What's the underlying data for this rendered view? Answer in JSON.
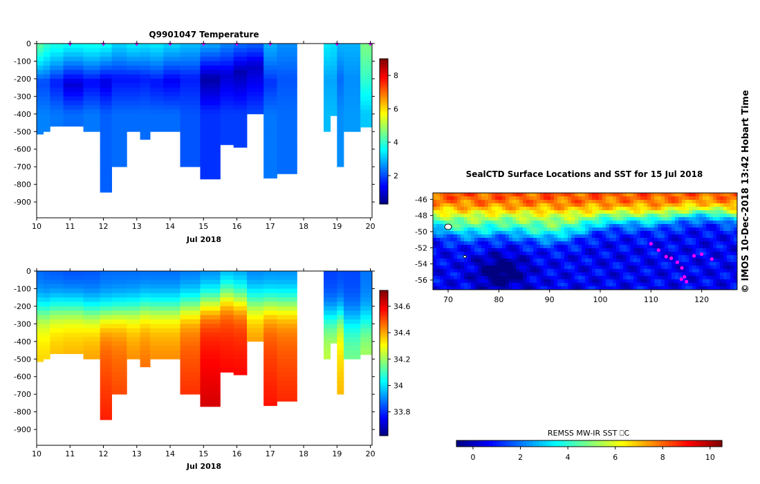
{
  "chart_data": [
    {
      "type": "heatmap",
      "title": "Q9901047  Temperature",
      "xlabel": "Jul 2018",
      "ylabel": "",
      "x_ticks": [
        "10",
        "11",
        "12",
        "13",
        "14",
        "15",
        "16",
        "17",
        "18",
        "19",
        "20"
      ],
      "y_ticks": [
        "0",
        "-100",
        "-200",
        "-300",
        "-400",
        "-500",
        "-600",
        "-700",
        "-800",
        "-900"
      ],
      "xlim": [
        10,
        20.05
      ],
      "ylim": [
        -990,
        0
      ],
      "colorbar": {
        "ticks": [
          "2",
          "4",
          "6",
          "8"
        ],
        "range": [
          0.3,
          9.0
        ]
      },
      "profile_markers_day": [
        11,
        12,
        13,
        14,
        15,
        16,
        17,
        19,
        20
      ],
      "profiles": [
        {
          "t": [
            10.0,
            10.2
          ],
          "depth": 515,
          "surface": 4.4,
          "min": 2.0,
          "mind": 220,
          "deep": 2.5
        },
        {
          "t": [
            10.2,
            10.4
          ],
          "depth": 500,
          "surface": 4.0,
          "min": 2.0,
          "mind": 220,
          "deep": 2.5
        },
        {
          "t": [
            10.4,
            10.8
          ],
          "depth": 470,
          "surface": 3.8,
          "min": 1.6,
          "mind": 220,
          "deep": 2.4
        },
        {
          "t": [
            10.8,
            11.4
          ],
          "depth": 470,
          "surface": 3.6,
          "min": 1.0,
          "mind": 230,
          "deep": 2.3
        },
        {
          "t": [
            11.4,
            11.9
          ],
          "depth": 500,
          "surface": 3.7,
          "min": 1.4,
          "mind": 220,
          "deep": 2.4
        },
        {
          "t": [
            11.9,
            12.25
          ],
          "depth": 845,
          "surface": 3.6,
          "min": 1.1,
          "mind": 220,
          "deep": 2.2
        },
        {
          "t": [
            12.25,
            12.7
          ],
          "depth": 700,
          "surface": 3.2,
          "min": 1.5,
          "mind": 200,
          "deep": 2.3
        },
        {
          "t": [
            12.7,
            13.1
          ],
          "depth": 500,
          "surface": 3.4,
          "min": 1.5,
          "mind": 200,
          "deep": 2.3
        },
        {
          "t": [
            13.1,
            13.4
          ],
          "depth": 545,
          "surface": 3.3,
          "min": 1.6,
          "mind": 200,
          "deep": 2.3
        },
        {
          "t": [
            13.4,
            13.8
          ],
          "depth": 500,
          "surface": 3.4,
          "min": 1.5,
          "mind": 220,
          "deep": 2.3
        },
        {
          "t": [
            13.8,
            14.3
          ],
          "depth": 500,
          "surface": 3.2,
          "min": 1.3,
          "mind": 210,
          "deep": 2.3
        },
        {
          "t": [
            14.3,
            14.9
          ],
          "depth": 700,
          "surface": 3.0,
          "min": 1.6,
          "mind": 200,
          "deep": 2.1
        },
        {
          "t": [
            14.9,
            15.5
          ],
          "depth": 770,
          "surface": 2.8,
          "min": 0.6,
          "mind": 200,
          "deep": 1.8
        },
        {
          "t": [
            15.5,
            15.9
          ],
          "depth": 575,
          "surface": 2.5,
          "min": 1.0,
          "mind": 180,
          "deep": 1.9
        },
        {
          "t": [
            15.9,
            16.3
          ],
          "depth": 590,
          "surface": 2.3,
          "min": 0.7,
          "mind": 160,
          "deep": 1.9
        },
        {
          "t": [
            16.3,
            16.8
          ],
          "depth": 400,
          "surface": 2.2,
          "min": 0.9,
          "mind": 130,
          "deep": 2.0
        },
        {
          "t": [
            16.8,
            17.2
          ],
          "depth": 765,
          "surface": 2.9,
          "min": 1.8,
          "mind": 220,
          "deep": 2.4
        },
        {
          "t": [
            17.2,
            17.8
          ],
          "depth": 740,
          "surface": 2.6,
          "min": 2.1,
          "mind": 200,
          "deep": 2.3
        },
        {
          "t": [
            18.6,
            18.8
          ],
          "depth": 500,
          "surface": 3.4,
          "min": 2.8,
          "mind": 200,
          "deep": 3.0
        },
        {
          "t": [
            18.8,
            19.0
          ],
          "depth": 410,
          "surface": 3.3,
          "min": 2.8,
          "mind": 200,
          "deep": 3.0
        },
        {
          "t": [
            19.0,
            19.2
          ],
          "depth": 700,
          "surface": 2.9,
          "min": 2.3,
          "mind": 200,
          "deep": 2.6
        },
        {
          "t": [
            19.2,
            19.7
          ],
          "depth": 500,
          "surface": 2.9,
          "min": 2.6,
          "mind": 200,
          "deep": 2.7
        },
        {
          "t": [
            19.7,
            20.05
          ],
          "depth": 475,
          "surface": 4.6,
          "min": 4.0,
          "mind": 200,
          "deep": 3.1
        }
      ]
    },
    {
      "type": "heatmap",
      "title": "",
      "xlabel": "Jul 2018",
      "ylabel": "",
      "x_ticks": [
        "10",
        "11",
        "12",
        "13",
        "14",
        "15",
        "16",
        "17",
        "18",
        "19",
        "20"
      ],
      "y_ticks": [
        "0",
        "-100",
        "-200",
        "-300",
        "-400",
        "-500",
        "-600",
        "-700",
        "-800",
        "-900"
      ],
      "xlim": [
        10,
        20.05
      ],
      "ylim": [
        -990,
        0
      ],
      "colorbar": {
        "ticks": [
          "33.8",
          "34",
          "34.2",
          "34.4",
          "34.6"
        ],
        "range": [
          33.62,
          34.72
        ]
      },
      "profiles": [
        {
          "t": [
            10.0,
            10.2
          ],
          "depth": 515,
          "surface": 33.86,
          "cline": 210,
          "deep": 34.3
        },
        {
          "t": [
            10.2,
            10.4
          ],
          "depth": 500,
          "surface": 33.85,
          "cline": 210,
          "deep": 34.3
        },
        {
          "t": [
            10.4,
            10.8
          ],
          "depth": 470,
          "surface": 33.84,
          "cline": 200,
          "deep": 34.33
        },
        {
          "t": [
            10.8,
            11.4
          ],
          "depth": 470,
          "surface": 33.83,
          "cline": 200,
          "deep": 34.34
        },
        {
          "t": [
            11.4,
            11.9
          ],
          "depth": 500,
          "surface": 33.84,
          "cline": 220,
          "deep": 34.36
        },
        {
          "t": [
            11.9,
            12.25
          ],
          "depth": 845,
          "surface": 33.86,
          "cline": 230,
          "deep": 34.44
        },
        {
          "t": [
            12.25,
            12.7
          ],
          "depth": 700,
          "surface": 33.86,
          "cline": 220,
          "deep": 34.42
        },
        {
          "t": [
            12.7,
            13.1
          ],
          "depth": 500,
          "surface": 33.86,
          "cline": 210,
          "deep": 34.38
        },
        {
          "t": [
            13.1,
            13.4
          ],
          "depth": 545,
          "surface": 33.86,
          "cline": 200,
          "deep": 34.4
        },
        {
          "t": [
            13.4,
            13.8
          ],
          "depth": 500,
          "surface": 33.86,
          "cline": 200,
          "deep": 34.38
        },
        {
          "t": [
            13.8,
            14.3
          ],
          "depth": 500,
          "surface": 33.86,
          "cline": 200,
          "deep": 34.38
        },
        {
          "t": [
            14.3,
            14.9
          ],
          "depth": 700,
          "surface": 33.87,
          "cline": 190,
          "deep": 34.44
        },
        {
          "t": [
            14.9,
            15.5
          ],
          "depth": 770,
          "surface": 33.88,
          "cline": 170,
          "deep": 34.52
        },
        {
          "t": [
            15.5,
            15.9
          ],
          "depth": 575,
          "surface": 33.9,
          "cline": 130,
          "deep": 34.5
        },
        {
          "t": [
            15.9,
            16.3
          ],
          "depth": 590,
          "surface": 33.9,
          "cline": 150,
          "deep": 34.5
        },
        {
          "t": [
            16.3,
            16.8
          ],
          "depth": 400,
          "surface": 33.88,
          "cline": 170,
          "deep": 34.38
        },
        {
          "t": [
            16.8,
            17.2
          ],
          "depth": 765,
          "surface": 33.89,
          "cline": 180,
          "deep": 34.46
        },
        {
          "t": [
            17.2,
            17.8
          ],
          "depth": 740,
          "surface": 33.89,
          "cline": 180,
          "deep": 34.44
        },
        {
          "t": [
            18.6,
            18.8
          ],
          "depth": 500,
          "surface": 33.82,
          "cline": 250,
          "deep": 34.2
        },
        {
          "t": [
            18.8,
            19.0
          ],
          "depth": 410,
          "surface": 33.82,
          "cline": 250,
          "deep": 34.2
        },
        {
          "t": [
            19.0,
            19.2
          ],
          "depth": 700,
          "surface": 33.83,
          "cline": 250,
          "deep": 34.3
        },
        {
          "t": [
            19.2,
            19.7
          ],
          "depth": 500,
          "surface": 33.83,
          "cline": 270,
          "deep": 34.12
        },
        {
          "t": [
            19.7,
            20.05
          ],
          "depth": 475,
          "surface": 33.88,
          "cline": 270,
          "deep": 34.18
        }
      ]
    },
    {
      "type": "heatmap",
      "title": "SealCTD Surface Locations and SST for 15 Jul 2018",
      "xlabel": "",
      "ylabel": "",
      "x_ticks": [
        "70",
        "80",
        "90",
        "100",
        "110",
        "120"
      ],
      "y_ticks": [
        "-46",
        "-48",
        "-50",
        "-52",
        "-54",
        "-56"
      ],
      "xlim": [
        67,
        127
      ],
      "ylim": [
        -57.2,
        -45.2
      ],
      "colorbar_title": "REMSS MW-IR SST ⎕C",
      "colorbar": {
        "ticks": [
          "0",
          "2",
          "4",
          "6",
          "8",
          "10"
        ],
        "range": [
          -0.7,
          10.5
        ]
      },
      "seal_track": [
        [
          110.0,
          -51.5
        ],
        [
          111.5,
          -52.3
        ],
        [
          113.0,
          -53.1
        ],
        [
          114.0,
          -53.3
        ],
        [
          115.2,
          -53.8
        ],
        [
          116.1,
          -54.5
        ],
        [
          116.6,
          -55.6
        ],
        [
          117.0,
          -56.2
        ],
        [
          116.0,
          -55.9
        ],
        [
          118.5,
          -53.0
        ],
        [
          120.0,
          -52.8
        ],
        [
          122.0,
          -53.4
        ]
      ],
      "islands": [
        [
          70.0,
          -49.4
        ],
        [
          73.3,
          -53.1
        ]
      ]
    }
  ],
  "footer_stamp": "©  IMOS 10-Dec-2018 13:42 Hobart Time"
}
